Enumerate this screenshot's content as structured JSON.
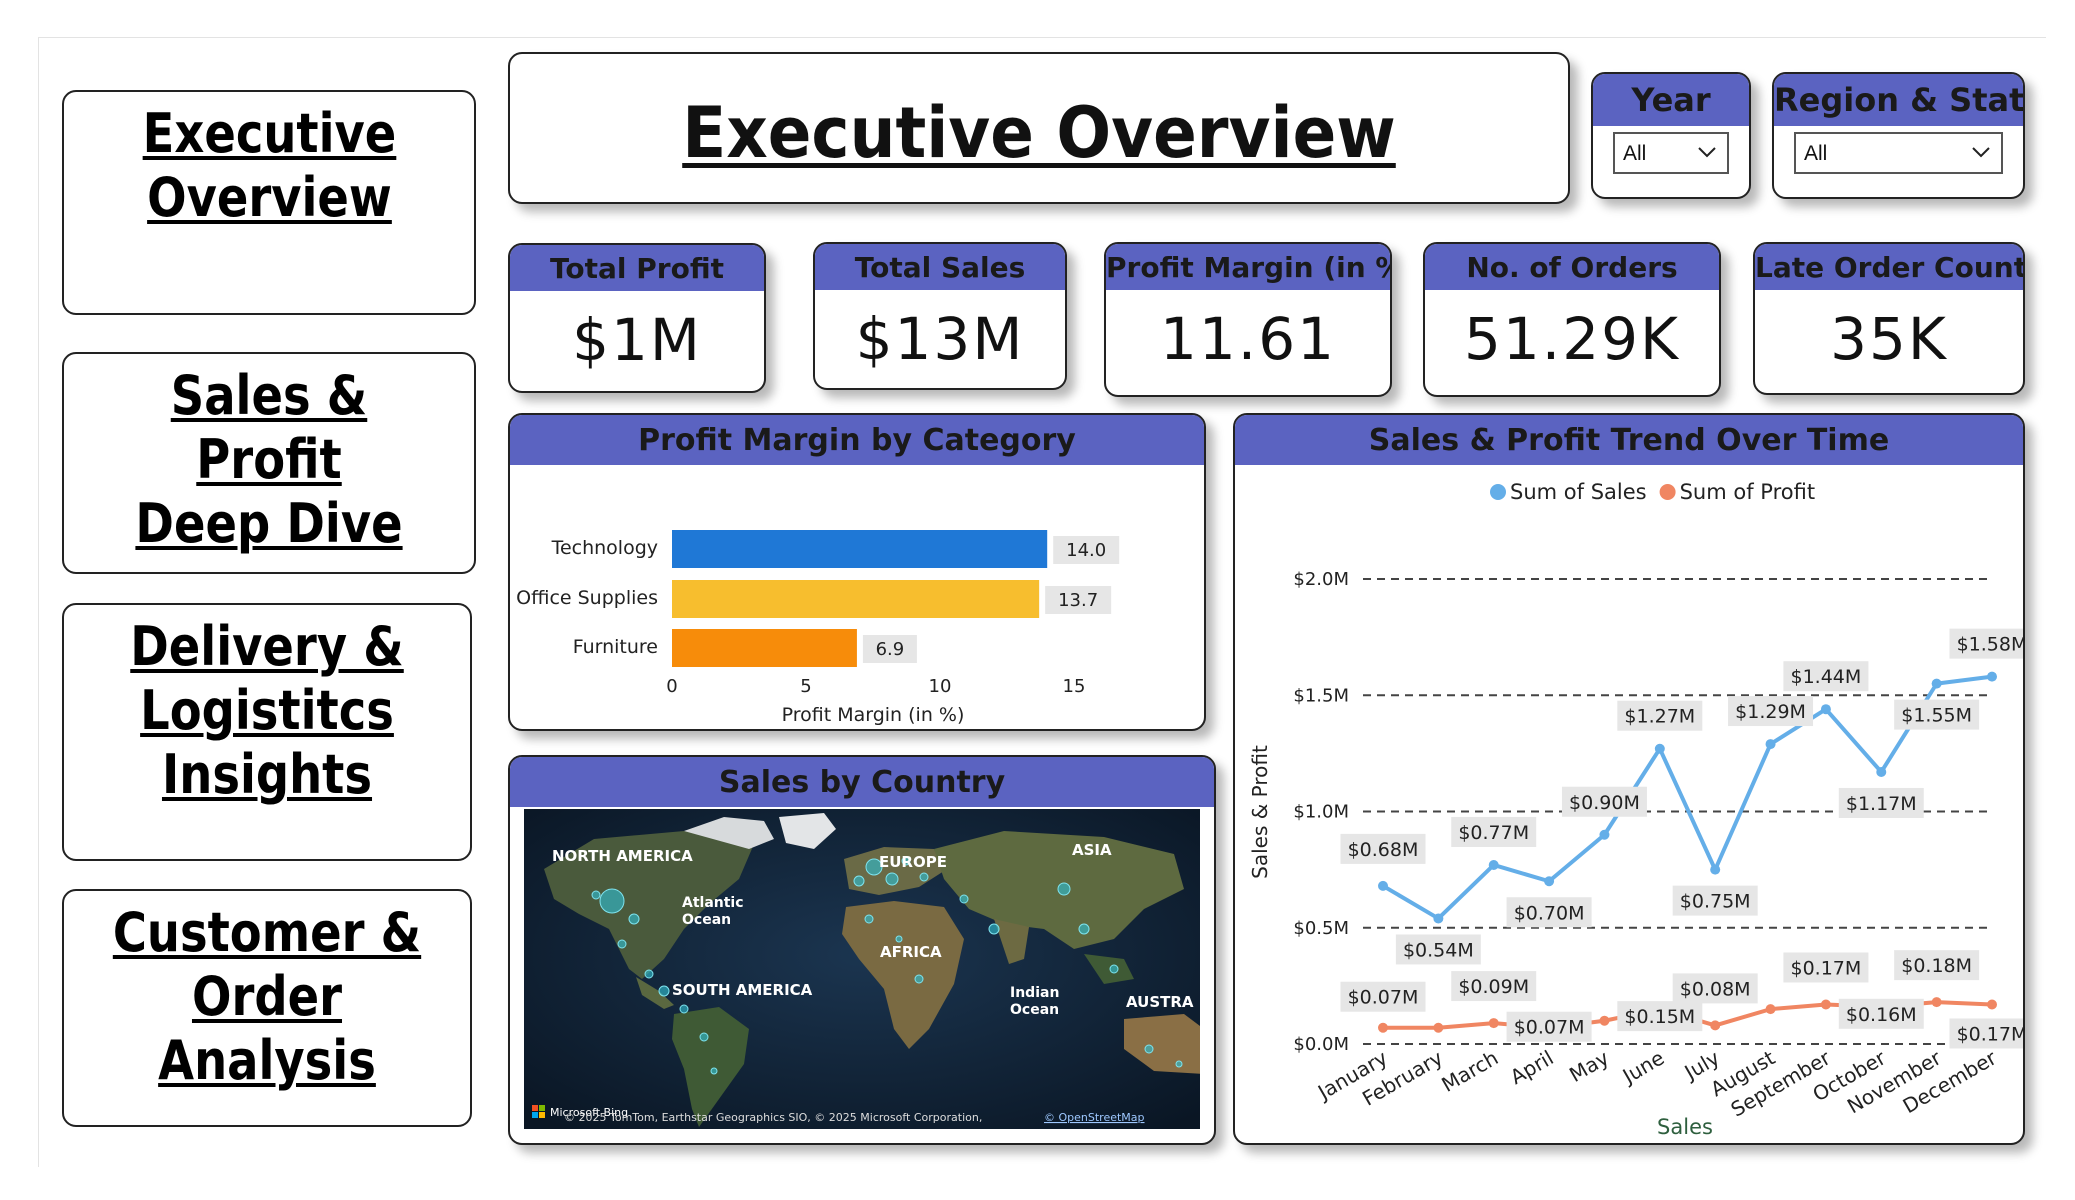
{
  "nav": [
    {
      "label": "Executive\nOverview"
    },
    {
      "label": "Sales & Profit\nDeep Dive"
    },
    {
      "label": "Delivery &\nLogistitcs\nInsights"
    },
    {
      "label": "Customer &\nOrder Analysis"
    }
  ],
  "page_title": "Executive Overview",
  "slicers": {
    "year": {
      "label": "Year",
      "value": "All"
    },
    "region": {
      "label": "Region & State",
      "value": "All"
    }
  },
  "kpis": [
    {
      "label": "Total Profit",
      "value": "$1M"
    },
    {
      "label": "Total Sales",
      "value": "$13M"
    },
    {
      "label": "Profit Margin (in %)",
      "value": "11.61"
    },
    {
      "label": "No. of Orders",
      "value": "51.29K"
    },
    {
      "label": "Late Order Count",
      "value": "35K"
    }
  ],
  "map": {
    "title": "Sales by Country",
    "labels": [
      "NORTH AMERICA",
      "Atlantic\nOcean",
      "EUROPE",
      "ASIA",
      "AFRICA",
      "SOUTH AMERICA",
      "Indian\nOcean",
      "AUSTRA"
    ],
    "attribution": "© 2025 TomTom, Earthstar Geographics SIO, © 2025 Microsoft Corporation,",
    "attribution_link": "© OpenStreetMap",
    "brand": "Microsoft Bing"
  },
  "colors": {
    "header": "#5b63c1",
    "technology": "#1f78d6",
    "office_supplies": "#f7be2e",
    "furniture": "#f78c0a",
    "sales_line": "#64aee8",
    "profit_line": "#f08662"
  },
  "chart_data": [
    {
      "type": "bar",
      "orientation": "horizontal",
      "title": "Profit Margin by Category",
      "categories": [
        "Technology",
        "Office Supplies",
        "Furniture"
      ],
      "values": [
        14.0,
        13.7,
        6.9
      ],
      "data_labels": [
        "14.0",
        "13.7",
        "6.9"
      ],
      "xlabel": "Profit Margin (in %)",
      "xticks": [
        "0",
        "5",
        "10",
        "15"
      ],
      "xlim": [
        0,
        17
      ]
    },
    {
      "type": "line",
      "title": "Sales & Profit Trend Over Time",
      "categories": [
        "January",
        "February",
        "March",
        "April",
        "May",
        "June",
        "July",
        "August",
        "September",
        "October",
        "November",
        "December"
      ],
      "series": [
        {
          "name": "Sum of Sales",
          "values": [
            0.68,
            0.54,
            0.77,
            0.7,
            0.9,
            1.27,
            0.75,
            1.29,
            1.44,
            1.17,
            1.55,
            1.58
          ],
          "labels": [
            "$0.68M",
            "$0.54M",
            "$0.77M",
            "$0.70M",
            "$0.90M",
            "$1.27M",
            "$0.75M",
            "$1.29M",
            "$1.44M",
            "$1.17M",
            "$1.55M",
            "$1.58M"
          ]
        },
        {
          "name": "Sum of Profit",
          "values": [
            0.07,
            0.07,
            0.09,
            0.07,
            0.1,
            0.15,
            0.08,
            0.15,
            0.17,
            0.16,
            0.18,
            0.17
          ],
          "labels": [
            "$0.07M",
            "",
            "$0.09M",
            "$0.07M",
            "",
            "$0.15M",
            "$0.08M",
            "",
            "$0.17M",
            "$0.16M",
            "$0.18M",
            "$0.17M"
          ]
        }
      ],
      "yticks": [
        "$0.0M",
        "$0.5M",
        "$1.0M",
        "$1.5M",
        "$2.0M"
      ],
      "ylim": [
        0,
        2.0
      ],
      "xlabel": "Sales",
      "ylabel": "Sales & Profit",
      "legend_position": "top-center",
      "grid": true
    }
  ]
}
